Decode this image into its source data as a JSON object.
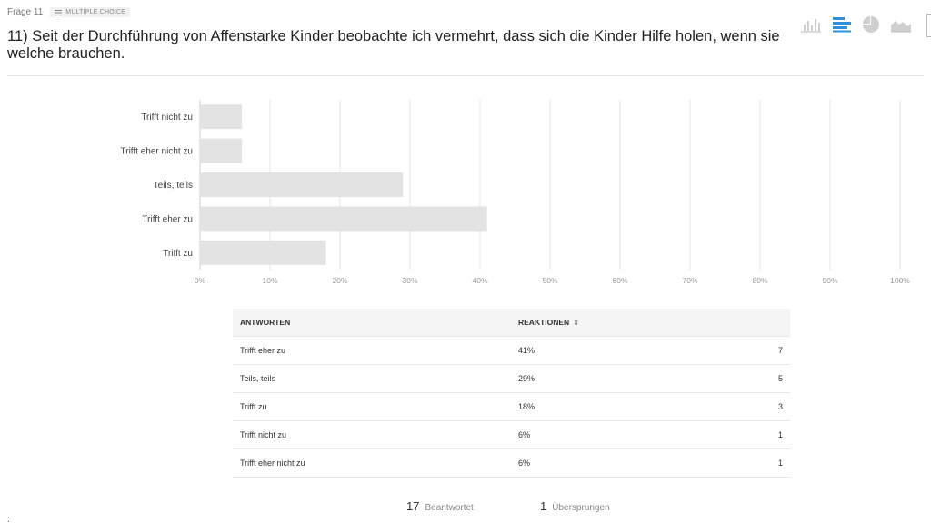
{
  "header": {
    "frage": "Frage 11",
    "badge": "MULTIPLE CHOICE",
    "title": "11) Seit der Durchführung von Affenstarke Kinder beobachte ich vermehrt, dass sich die Kinder Hilfe holen, wenn sie welche brauchen."
  },
  "view_icons": [
    "column-chart-icon",
    "bar-chart-icon",
    "pie-chart-icon",
    "area-chart-icon"
  ],
  "colors": {
    "bar": "#e3e3e3",
    "grid": "#e6e6e6",
    "accent": "#2f8fd8",
    "icon": "#cccccc"
  },
  "chart_data": {
    "type": "bar",
    "orientation": "horizontal",
    "categories": [
      "Trifft nicht zu",
      "Trifft eher nicht zu",
      "Teils, teils",
      "Trifft eher zu",
      "Trifft zu"
    ],
    "values": [
      6,
      6,
      29,
      41,
      18
    ],
    "xlim": [
      0,
      100
    ],
    "xticks": [
      "0%",
      "10%",
      "20%",
      "30%",
      "40%",
      "50%",
      "60%",
      "70%",
      "80%",
      "90%",
      "100%"
    ],
    "grid": true
  },
  "table": {
    "headers": [
      "ANTWORTEN",
      "REAKTIONEN",
      ""
    ],
    "sort_icon": "⇕",
    "rows": [
      [
        "Trifft eher zu",
        "41%",
        "7"
      ],
      [
        "Teils, teils",
        "29%",
        "5"
      ],
      [
        "Trifft zu",
        "18%",
        "3"
      ],
      [
        "Trifft nicht zu",
        "6%",
        "1"
      ],
      [
        "Trifft eher nicht zu",
        "6%",
        "1"
      ]
    ]
  },
  "footer": {
    "answered_count": "17",
    "answered_label": "Beantwortet",
    "skipped_count": "1",
    "skipped_label": "Übersprungen"
  },
  "misc": {
    "dots": ":"
  }
}
